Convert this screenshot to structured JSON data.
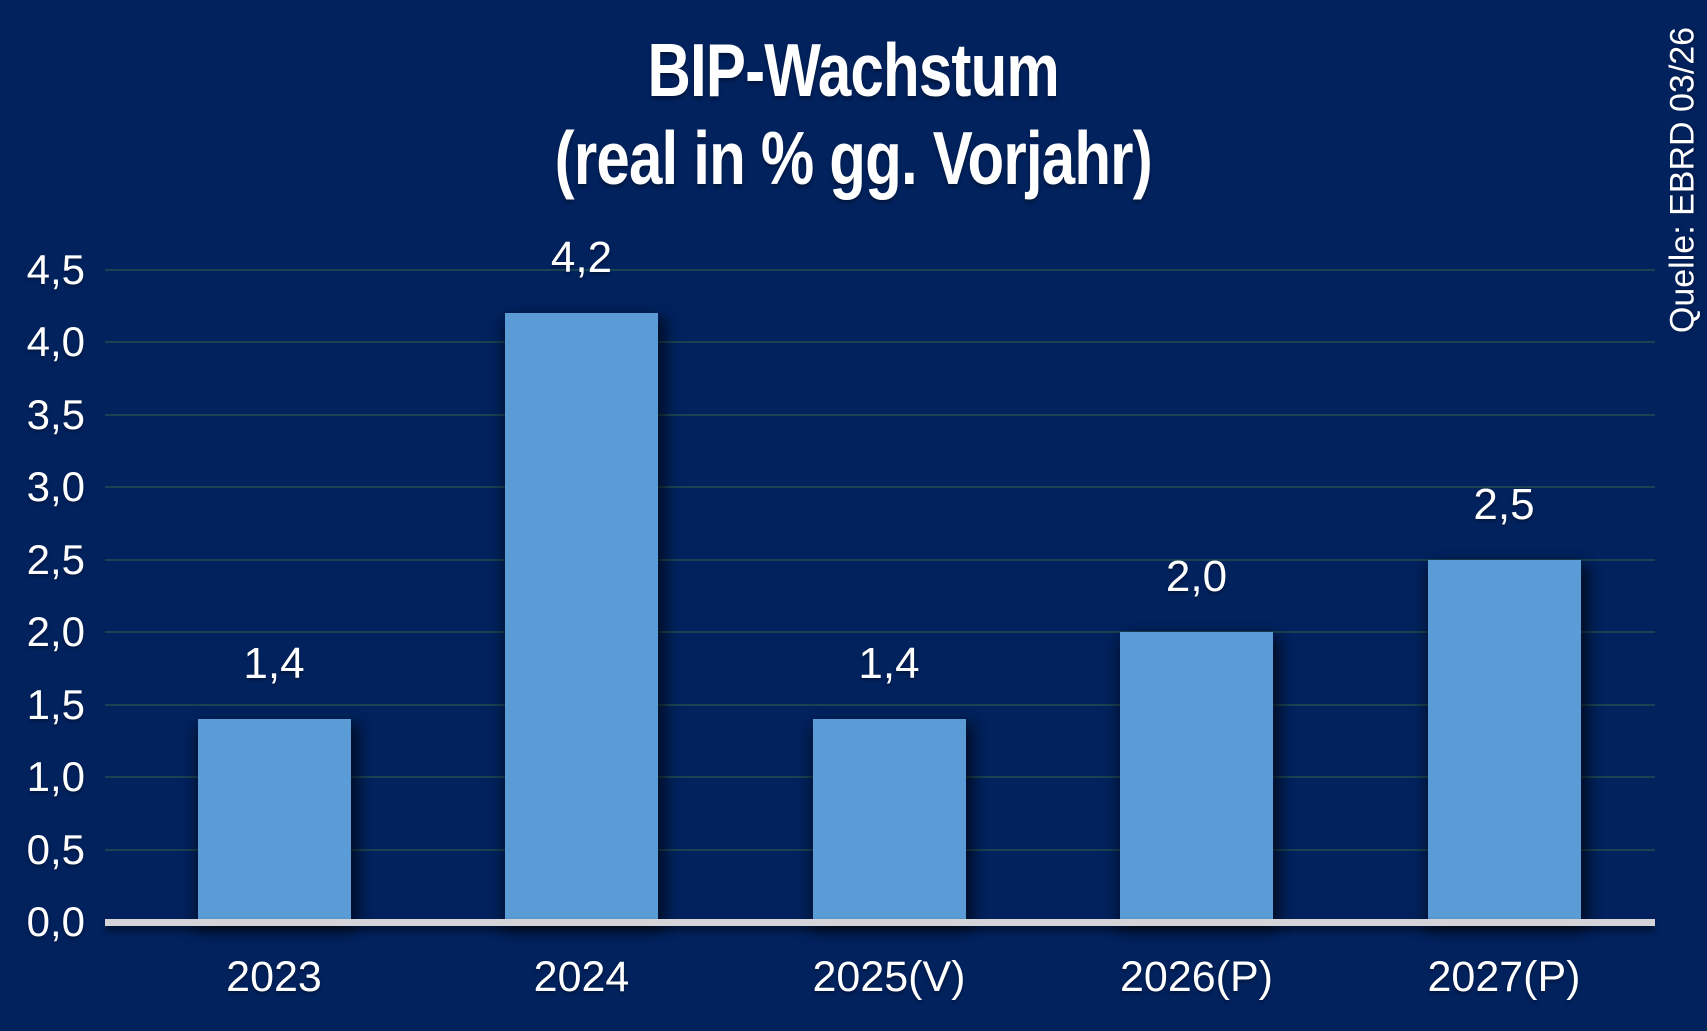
{
  "page": {
    "background": "#02225E"
  },
  "chart_data": {
    "type": "bar",
    "title": "BIP-Wachstum (real in % gg. Vorjahr)",
    "title_lines": [
      "BIP-Wachstum",
      "(real in % gg. Vorjahr)"
    ],
    "source_note": "Quelle: EBRD 03/26",
    "categories": [
      "2023",
      "2024",
      "2025(V)",
      "2026(P)",
      "2027(P)"
    ],
    "values": [
      1.4,
      4.2,
      1.4,
      2.0,
      2.5
    ],
    "value_labels": [
      "1,4",
      "4,2",
      "1,4",
      "2,0",
      "2,5"
    ],
    "y_axis": {
      "min": 0,
      "max": 4.5,
      "step": 0.5,
      "tick_labels": [
        "0,0",
        "0,5",
        "1,0",
        "1,5",
        "2,0",
        "2,5",
        "3,0",
        "3,5",
        "4,0",
        "4,5"
      ]
    },
    "grid": true,
    "legend": false,
    "colors": {
      "background": "#02225E",
      "bar": "#5B9CD6",
      "gridline": "#2D5F4B",
      "axis_line": "#D4D4D8",
      "text": "#FFFFFF"
    }
  }
}
